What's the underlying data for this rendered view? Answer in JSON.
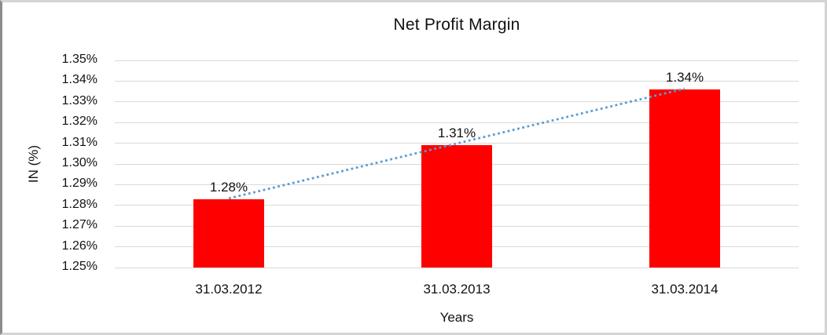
{
  "chart_data": {
    "type": "bar",
    "title": "Net Profit Margin",
    "xlabel": "Years",
    "ylabel": "IN (%)",
    "categories": [
      "31.03.2012",
      "31.03.2013",
      "31.03.2014"
    ],
    "values": [
      1.283,
      1.309,
      1.336
    ],
    "data_labels": [
      "1.28%",
      "1.31%",
      "1.34%"
    ],
    "ylim": [
      1.25,
      1.35
    ],
    "ytick_step": 0.01,
    "ytick_labels": [
      "1.25%",
      "1.26%",
      "1.27%",
      "1.28%",
      "1.29%",
      "1.30%",
      "1.31%",
      "1.32%",
      "1.33%",
      "1.34%",
      "1.35%"
    ],
    "grid": true,
    "legend": "none",
    "bar_color": "#ff0000",
    "text_color": "#111111",
    "gridline_color": "#d9d9d9",
    "trendline": {
      "type": "linear",
      "style": "dotted",
      "color": "#5b9bd5"
    }
  }
}
